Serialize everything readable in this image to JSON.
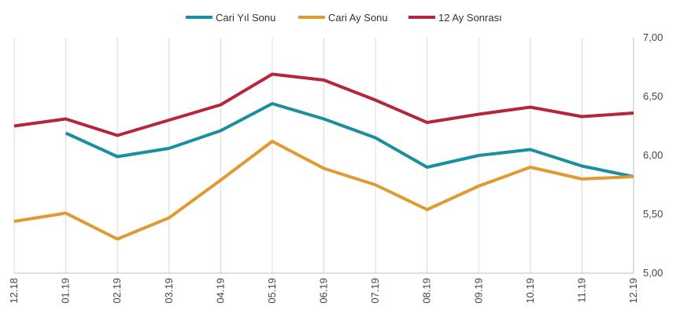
{
  "chart_data": {
    "type": "line",
    "title": "",
    "xlabel": "",
    "ylabel": "",
    "categories": [
      "12.18",
      "01.19",
      "02.19",
      "03.19",
      "04.19",
      "05.19",
      "06.19",
      "07.19",
      "08.19",
      "09.19",
      "10.19",
      "11.19",
      "12.19"
    ],
    "ylim": [
      5.0,
      7.0
    ],
    "yticks": [
      5.0,
      5.5,
      6.0,
      6.5,
      7.0
    ],
    "ytick_labels": [
      "5,00",
      "5,50",
      "6,00",
      "6,50",
      "7,00"
    ],
    "y_axis_side": "right",
    "grid": "vertical",
    "legend_position": "top",
    "series": [
      {
        "name": "Cari Yıl Sonu",
        "color": "#1a8fa0",
        "values": [
          null,
          6.19,
          5.99,
          6.06,
          6.21,
          6.44,
          6.31,
          6.15,
          5.9,
          6.0,
          6.05,
          5.91,
          5.82
        ]
      },
      {
        "name": "Cari Ay Sonu",
        "color": "#e09a32",
        "values": [
          5.44,
          5.51,
          5.29,
          5.47,
          5.79,
          6.12,
          5.89,
          5.75,
          5.54,
          5.74,
          5.9,
          5.8,
          5.82
        ]
      },
      {
        "name": "12 Ay Sonrası",
        "color": "#b5263c",
        "values": [
          6.25,
          6.31,
          6.17,
          6.3,
          6.43,
          6.69,
          6.64,
          6.47,
          6.28,
          6.35,
          6.41,
          6.33,
          6.36
        ]
      }
    ]
  }
}
